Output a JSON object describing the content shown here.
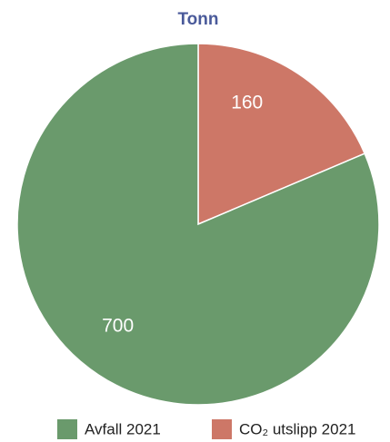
{
  "chart_data": {
    "type": "pie",
    "title": "Tonn",
    "categories": [
      "Avfall 2021",
      "CO₂ utslipp 2021"
    ],
    "values": [
      700,
      160
    ],
    "colors": [
      "#6a9a6c",
      "#cd7767"
    ],
    "legend": "bottom"
  }
}
